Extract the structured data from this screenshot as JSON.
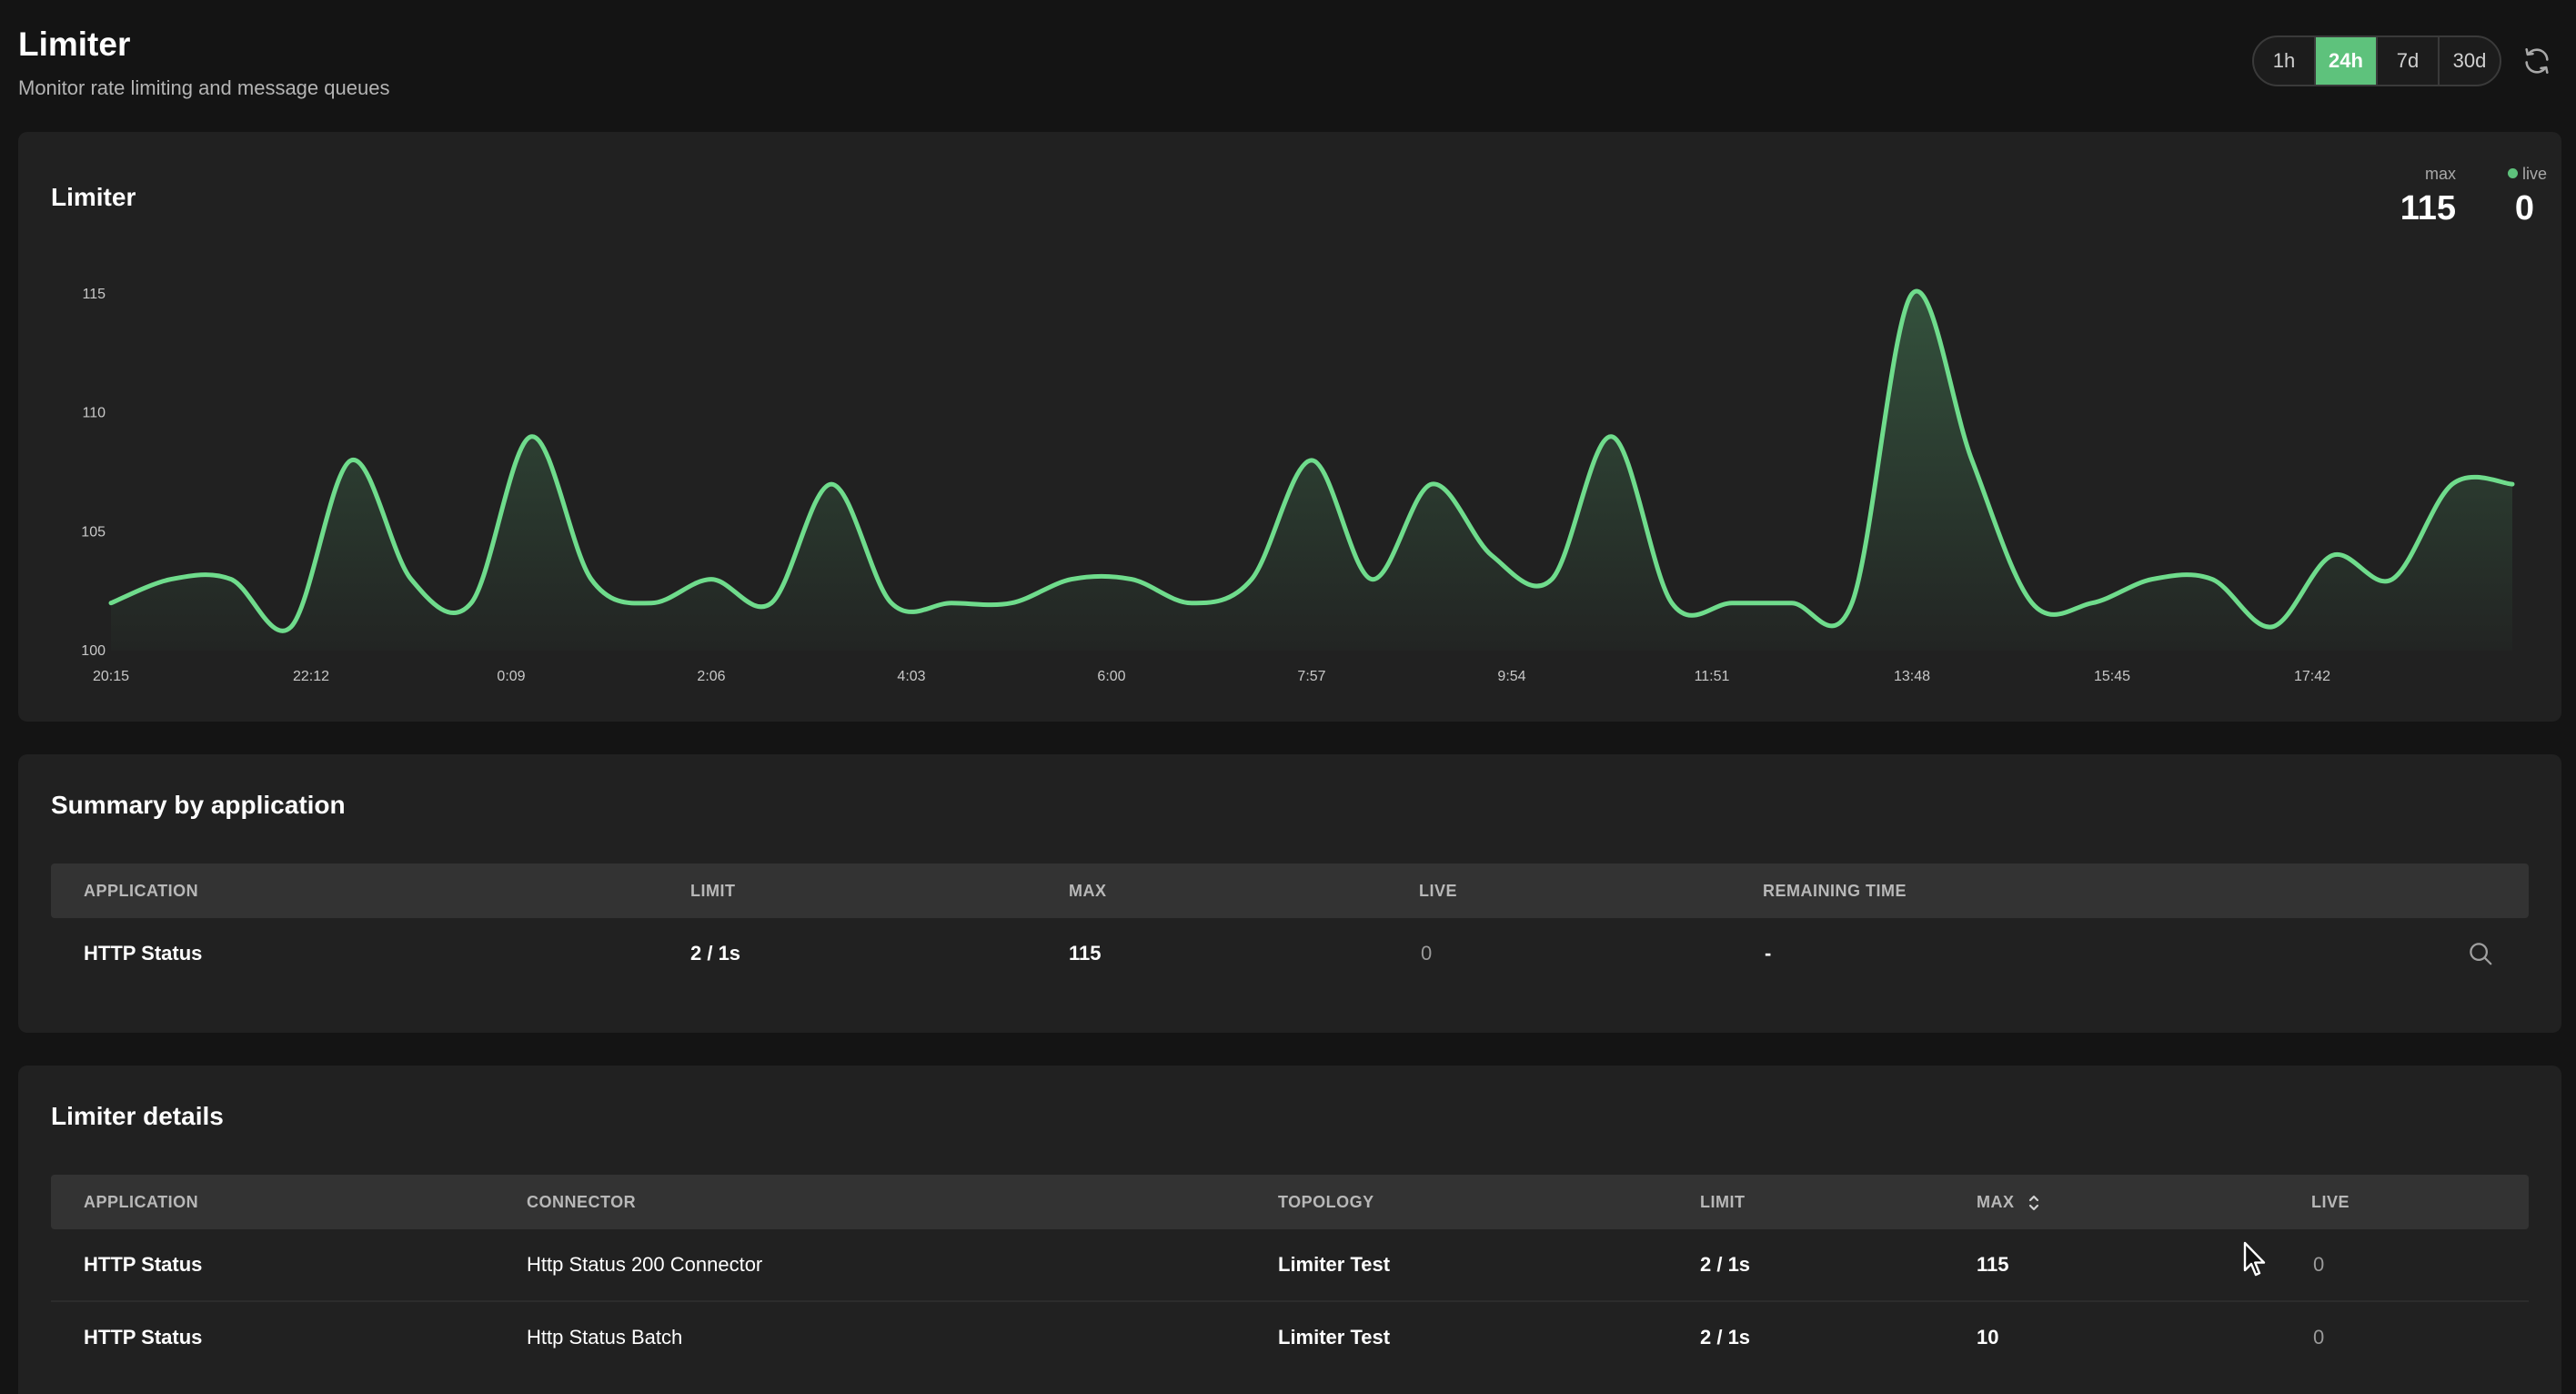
{
  "header": {
    "title": "Limiter",
    "subtitle": "Monitor rate limiting and message queues"
  },
  "time_range": {
    "options": [
      "1h",
      "24h",
      "7d",
      "30d"
    ],
    "selected": "24h",
    "refresh_icon": "refresh-icon"
  },
  "limiter_card": {
    "title": "Limiter",
    "max_label": "max",
    "max_value": "115",
    "live_label": "live",
    "live_value": "0"
  },
  "chart_data": {
    "type": "area",
    "ylim": [
      100,
      115
    ],
    "yticks": [
      100,
      105,
      110,
      115
    ],
    "xticks": [
      "20:15",
      "22:12",
      "0:09",
      "2:06",
      "4:03",
      "6:00",
      "7:57",
      "9:54",
      "11:51",
      "13:48",
      "15:45",
      "17:42"
    ],
    "x": [
      "20:15",
      "20:51",
      "21:27",
      "22:03",
      "22:39",
      "23:15",
      "23:51",
      "0:27",
      "1:03",
      "1:39",
      "2:15",
      "2:51",
      "3:27",
      "4:03",
      "4:39",
      "5:15",
      "5:51",
      "6:27",
      "7:03",
      "7:39",
      "8:15",
      "8:51",
      "9:27",
      "10:03",
      "10:39",
      "11:15",
      "11:51",
      "12:27",
      "13:03",
      "13:39",
      "14:15",
      "14:51",
      "15:27",
      "16:03",
      "16:39",
      "17:15",
      "17:51",
      "18:27",
      "19:03",
      "19:39",
      "20:15"
    ],
    "values": [
      102,
      103,
      103,
      101,
      108,
      103,
      102,
      109,
      103,
      102,
      103,
      102,
      107,
      102,
      102,
      102,
      103,
      103,
      102,
      103,
      108,
      103,
      107,
      104,
      103,
      109,
      102,
      102,
      102,
      102,
      115,
      108,
      102,
      102,
      103,
      103,
      101,
      104,
      103,
      107,
      107
    ],
    "grid": false,
    "line_color": "#6fdc8c"
  },
  "summary": {
    "title": "Summary by application",
    "columns": [
      "APPLICATION",
      "LIMIT",
      "MAX",
      "LIVE",
      "REMAINING TIME"
    ],
    "rows": [
      {
        "application": "HTTP Status",
        "limit": "2 / 1s",
        "max": "115",
        "live": "0",
        "remaining": "-"
      }
    ],
    "row_action_icon": "search-icon"
  },
  "details": {
    "title": "Limiter details",
    "columns": [
      "APPLICATION",
      "CONNECTOR",
      "TOPOLOGY",
      "LIMIT",
      "MAX",
      "LIVE"
    ],
    "rows": [
      {
        "application": "HTTP Status",
        "connector": "Http Status 200 Connector",
        "topology": "Limiter Test",
        "limit": "2 / 1s",
        "max": "115",
        "live": "0"
      },
      {
        "application": "HTTP Status",
        "connector": "Http Status Batch",
        "topology": "Limiter Test",
        "limit": "2 / 1s",
        "max": "10",
        "live": "0"
      }
    ],
    "sort_icon": "sort-icon"
  },
  "colors": {
    "accent": "#5ec27c",
    "background": "#141414",
    "card": "#212121"
  }
}
